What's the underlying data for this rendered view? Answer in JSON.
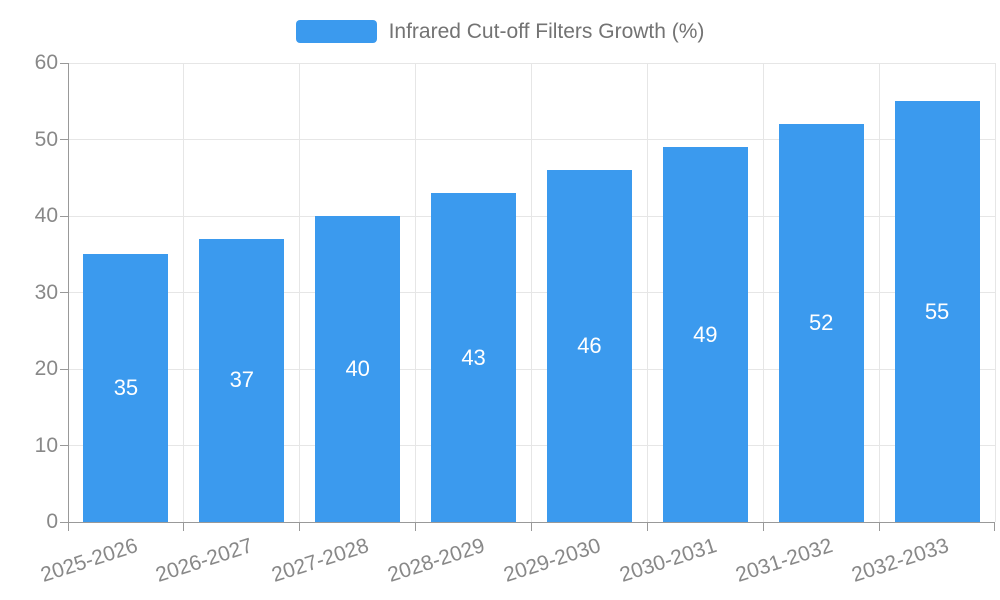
{
  "chart_data": {
    "type": "bar",
    "title": "Infrared Cut-off Filters Growth (%)",
    "legend": [
      "Infrared Cut-off Filters Growth (%)"
    ],
    "legend_position": "top-center",
    "categories": [
      "2025-2026",
      "2026-2027",
      "2027-2028",
      "2028-2029",
      "2029-2030",
      "2030-2031",
      "2031-2032",
      "2032-2033"
    ],
    "values": [
      35,
      37,
      40,
      43,
      46,
      49,
      52,
      55
    ],
    "xlabel": "",
    "ylabel": "",
    "ylim": [
      0,
      60
    ],
    "yticks": [
      0,
      10,
      20,
      30,
      40,
      50,
      60
    ],
    "grid": true,
    "x_label_rotation_deg": -18,
    "value_labels_shown": true
  },
  "colors": {
    "bar": "#3b9aee",
    "value_label": "#ffffff",
    "axis_line": "#999999",
    "gridline": "#e6e6e6",
    "axis_text": "#888888",
    "legend_text": "#737373"
  }
}
